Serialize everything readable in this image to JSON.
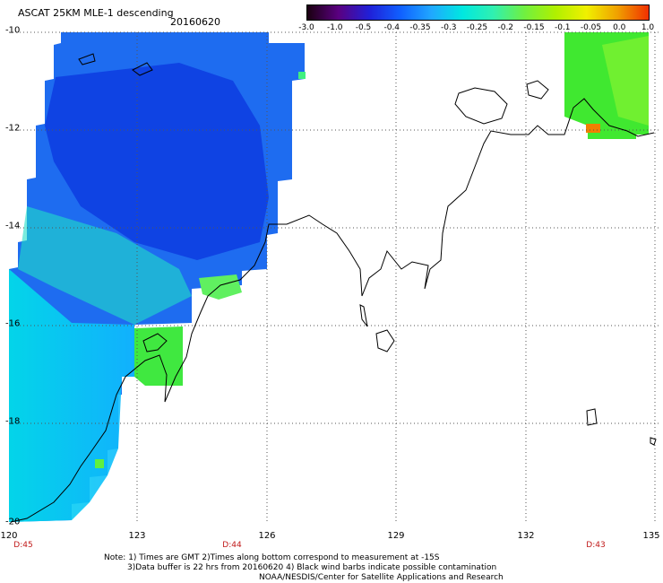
{
  "header": {
    "title": "ASCAT 25KM MLE-1 descending",
    "date": "20160620"
  },
  "colorbar": {
    "labels": [
      "-3.0",
      "-1.0",
      "-0.5",
      "-0.4",
      "-0.35",
      "-0.3",
      "-0.25",
      "-0.2",
      "-0.15",
      "-0.1",
      "-0.05",
      "0.0",
      "1.0"
    ],
    "colors": [
      "#1a0010",
      "#5a0080",
      "#2020d8",
      "#1060ff",
      "#20a8ff",
      "#00e8e0",
      "#30f0b0",
      "#70f040",
      "#b0f000",
      "#f0f000",
      "#f0a000",
      "#f03000"
    ]
  },
  "axes": {
    "lat_labels": [
      "-10",
      "-12",
      "-14",
      "-16",
      "-18",
      "-20"
    ],
    "lon_labels": [
      "120",
      "123",
      "126",
      "129",
      "132",
      "135"
    ]
  },
  "time_labels": [
    "D:45",
    "D:44",
    "D:43"
  ],
  "notes": {
    "line1": "Note: 1) Times are GMT 2)Times along bottom correspond to measurement at -15S",
    "line2": "3)Data buffer is 22 hrs from 20160620 4) Black wind barbs indicate possible contamination",
    "line3": "NOAA/NESDIS/Center for Satellite Applications and Research"
  }
}
